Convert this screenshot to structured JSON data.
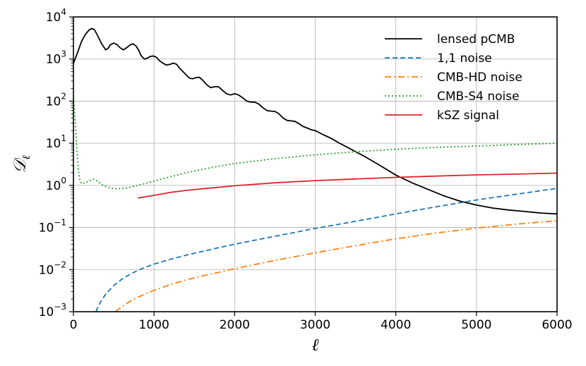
{
  "chart_data": {
    "type": "line",
    "title": "",
    "xlabel": "ℓ",
    "ylabel": {
      "main": "𝒟",
      "sub": "ℓ"
    },
    "xlim": [
      0,
      6000
    ],
    "ylim": [
      0.001,
      10000
    ],
    "yscale": "log",
    "grid": true,
    "legend_position": "top-right",
    "x_ticks": [
      {
        "value": 0,
        "label": "0"
      },
      {
        "value": 1000,
        "label": "1000"
      },
      {
        "value": 2000,
        "label": "2000"
      },
      {
        "value": 3000,
        "label": "3000"
      },
      {
        "value": 4000,
        "label": "4000"
      },
      {
        "value": 5000,
        "label": "5000"
      },
      {
        "value": 6000,
        "label": "6000"
      }
    ],
    "y_ticks": [
      {
        "value": 0.001,
        "base": "10",
        "exp": "−3"
      },
      {
        "value": 0.01,
        "base": "10",
        "exp": "−2"
      },
      {
        "value": 0.1,
        "base": "10",
        "exp": "−1"
      },
      {
        "value": 1,
        "base": "10",
        "exp": "0"
      },
      {
        "value": 10,
        "base": "10",
        "exp": "1"
      },
      {
        "value": 100,
        "base": "10",
        "exp": "2"
      },
      {
        "value": 1000,
        "base": "10",
        "exp": "3"
      },
      {
        "value": 10000,
        "base": "10",
        "exp": "4"
      }
    ],
    "series": [
      {
        "name": "lensed pCMB",
        "color": "#000000",
        "dash": "solid",
        "x": [
          2,
          50,
          100,
          150,
          200,
          230,
          260,
          300,
          350,
          400,
          430,
          460,
          500,
          540,
          580,
          620,
          660,
          700,
          740,
          780,
          810,
          840,
          880,
          920,
          950,
          990,
          1030,
          1070,
          1110,
          1150,
          1200,
          1240,
          1280,
          1320,
          1360,
          1400,
          1440,
          1480,
          1520,
          1560,
          1600,
          1650,
          1700,
          1750,
          1800,
          1850,
          1900,
          1950,
          2000,
          2050,
          2100,
          2150,
          2200,
          2250,
          2300,
          2350,
          2400,
          2450,
          2500,
          2550,
          2600,
          2650,
          2700,
          2750,
          2800,
          2850,
          2900,
          2950,
          3000,
          3100,
          3200,
          3300,
          3400,
          3500,
          3600,
          3700,
          3800,
          3900,
          4000,
          4200,
          4400,
          4600,
          4800,
          5000,
          5200,
          5400,
          5600,
          5800,
          6000
        ],
        "y": [
          800,
          1400,
          2600,
          3900,
          5000,
          5300,
          5000,
          3600,
          2300,
          1650,
          1800,
          2200,
          2400,
          2200,
          1850,
          1650,
          1850,
          2150,
          2300,
          2000,
          1600,
          1200,
          1000,
          1050,
          1150,
          1180,
          1100,
          900,
          800,
          720,
          750,
          800,
          750,
          600,
          500,
          420,
          350,
          340,
          360,
          370,
          320,
          250,
          210,
          220,
          220,
          180,
          150,
          140,
          150,
          140,
          120,
          100,
          95,
          95,
          85,
          70,
          60,
          58,
          57,
          50,
          40,
          35,
          34,
          33,
          29,
          25,
          23,
          21,
          20,
          16,
          13,
          10,
          8,
          6.3,
          5,
          3.9,
          3.0,
          2.3,
          1.75,
          1.15,
          0.8,
          0.56,
          0.42,
          0.34,
          0.29,
          0.26,
          0.24,
          0.22,
          0.21
        ]
      },
      {
        "name": "1,1 noise",
        "color": "#1f77b4",
        "dash": "7 4",
        "x": [
          280,
          300,
          350,
          400,
          500,
          600,
          700,
          800,
          900,
          1000,
          1200,
          1400,
          1600,
          1800,
          2000,
          2500,
          3000,
          3500,
          4000,
          4500,
          5000,
          5500,
          6000
        ],
        "y": [
          0.001,
          0.00125,
          0.0019,
          0.0026,
          0.0042,
          0.0059,
          0.0077,
          0.0096,
          0.0115,
          0.0135,
          0.0175,
          0.022,
          0.027,
          0.033,
          0.04,
          0.062,
          0.095,
          0.14,
          0.21,
          0.31,
          0.45,
          0.62,
          0.85
        ]
      },
      {
        "name": "CMB-HD noise",
        "color": "#ff7f0e",
        "dash": "9 4 2 4",
        "x": [
          520,
          560,
          600,
          700,
          800,
          900,
          1000,
          1200,
          1400,
          1600,
          1800,
          2000,
          2500,
          3000,
          3500,
          4000,
          4500,
          5000,
          5500,
          6000
        ],
        "y": [
          0.001,
          0.00115,
          0.0013,
          0.00175,
          0.0022,
          0.0027,
          0.0032,
          0.0044,
          0.0057,
          0.0071,
          0.0086,
          0.0105,
          0.0165,
          0.025,
          0.037,
          0.054,
          0.074,
          0.097,
          0.12,
          0.145
        ]
      },
      {
        "name": "CMB-S4 noise",
        "color": "#2ca02c",
        "dash": "2 3",
        "x": [
          2,
          20,
          40,
          60,
          80,
          100,
          150,
          200,
          250,
          300,
          350,
          400,
          450,
          500,
          550,
          600,
          650,
          700,
          750,
          800,
          900,
          1000,
          1200,
          1400,
          1600,
          1800,
          2000,
          2500,
          3000,
          3500,
          4000,
          4500,
          5000,
          5500,
          6000
        ],
        "y": [
          120,
          40,
          8,
          2.5,
          1.3,
          1.1,
          1.15,
          1.3,
          1.4,
          1.25,
          1.05,
          0.95,
          0.88,
          0.84,
          0.83,
          0.84,
          0.86,
          0.9,
          0.95,
          1.0,
          1.12,
          1.27,
          1.6,
          2.0,
          2.4,
          2.85,
          3.3,
          4.3,
          5.3,
          6.3,
          7.2,
          8.0,
          8.6,
          9.3,
          10.0
        ]
      },
      {
        "name": "kSZ signal",
        "color": "#d62728",
        "dash": "solid",
        "x": [
          800,
          1000,
          1200,
          1400,
          1600,
          1800,
          2000,
          2500,
          3000,
          3500,
          4000,
          4500,
          5000,
          5500,
          6000
        ],
        "y": [
          0.5,
          0.58,
          0.68,
          0.76,
          0.83,
          0.9,
          0.98,
          1.15,
          1.3,
          1.42,
          1.55,
          1.66,
          1.77,
          1.85,
          1.95
        ]
      }
    ]
  }
}
